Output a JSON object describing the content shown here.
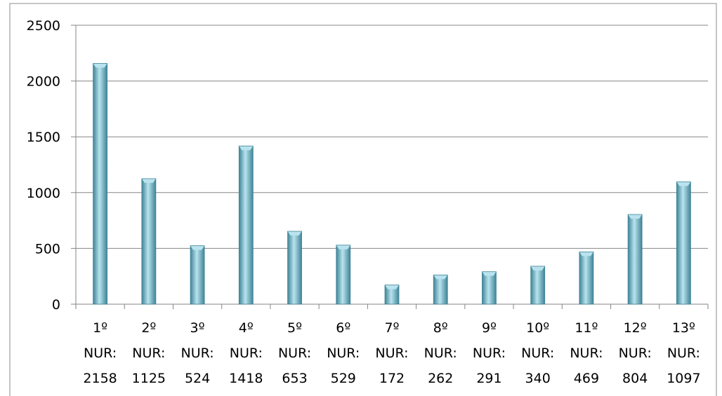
{
  "chart_data": {
    "type": "bar",
    "categories": [
      [
        "1º",
        "NUR:",
        "2158"
      ],
      [
        "2º",
        "NUR:",
        "1125"
      ],
      [
        "3º",
        "NUR:",
        "524"
      ],
      [
        "4º",
        "NUR:",
        "1418"
      ],
      [
        "5º",
        "NUR:",
        "653"
      ],
      [
        "6º",
        "NUR:",
        "529"
      ],
      [
        "7º",
        "NUR:",
        "172"
      ],
      [
        "8º",
        "NUR:",
        "262"
      ],
      [
        "9º",
        "NUR:",
        "291"
      ],
      [
        "10º",
        "NUR:",
        "340"
      ],
      [
        "11º",
        "NUR:",
        "469"
      ],
      [
        "12º",
        "NUR:",
        "804"
      ],
      [
        "13º",
        "NUR:",
        "1097"
      ]
    ],
    "values": [
      2158,
      1125,
      524,
      1418,
      653,
      529,
      172,
      262,
      291,
      340,
      469,
      804,
      1097
    ],
    "ylim": [
      0,
      2500
    ],
    "yticks": [
      0,
      500,
      1000,
      1500,
      2000,
      2500
    ],
    "grid": true,
    "legend": "none",
    "bar_color": "#6fb7cc",
    "bar_highlight": "#b9e3ee",
    "bar_shadow": "#3f8497"
  }
}
